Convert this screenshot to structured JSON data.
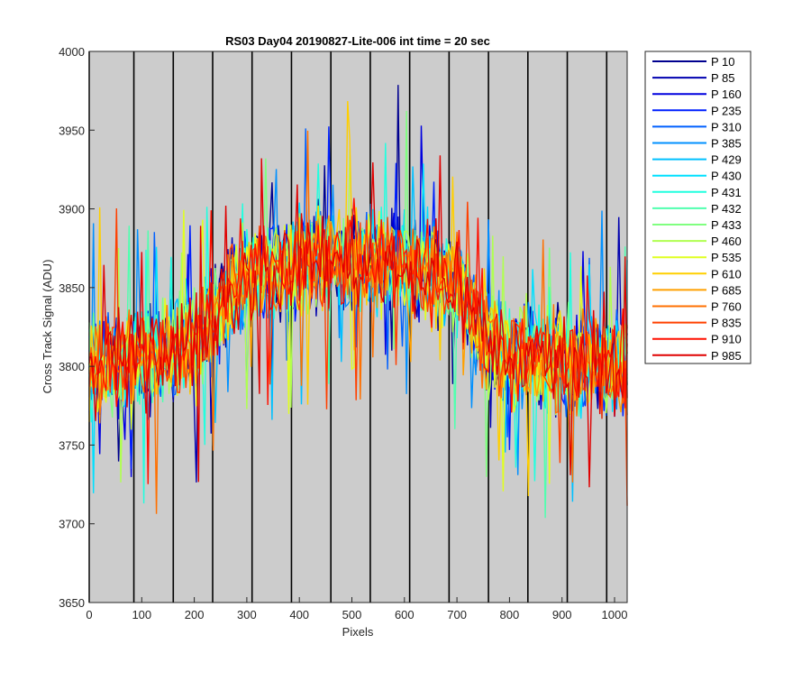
{
  "chart_data": {
    "type": "line",
    "title": "RS03 Day04 20190827-Lite-006 int time = 20 sec",
    "xlabel": "Pixels",
    "ylabel": "Cross Track Signal (ADU)",
    "xlim": [
      0,
      1024
    ],
    "ylim": [
      3650,
      4000
    ],
    "xticks": [
      0,
      100,
      200,
      300,
      400,
      500,
      600,
      700,
      800,
      900,
      1000
    ],
    "yticks": [
      3650,
      3700,
      3750,
      3800,
      3850,
      3900,
      3950,
      4000
    ],
    "background": "#cccccc",
    "grid": false,
    "legend_position": "outside-right",
    "vertical_markers_x": [
      0,
      85,
      160,
      235,
      310,
      385,
      460,
      535,
      610,
      685,
      760,
      835,
      910,
      985
    ],
    "vertical_marker_color": "#000000",
    "trend": {
      "description_points_x": [
        0,
        100,
        200,
        250,
        300,
        400,
        500,
        600,
        700,
        750,
        800,
        900,
        1024
      ],
      "mean_y": [
        3800,
        3805,
        3815,
        3840,
        3855,
        3865,
        3868,
        3865,
        3855,
        3820,
        3808,
        3803,
        3800
      ],
      "noise_band_adu": 45
    },
    "series": [
      {
        "name": "P 10",
        "color": "#00008f"
      },
      {
        "name": "P 85",
        "color": "#0000af"
      },
      {
        "name": "P 160",
        "color": "#0000df"
      },
      {
        "name": "P 235",
        "color": "#0020ff"
      },
      {
        "name": "P 310",
        "color": "#0060ff"
      },
      {
        "name": "P 385",
        "color": "#0090ff"
      },
      {
        "name": "P 429",
        "color": "#00c0ff"
      },
      {
        "name": "P 430",
        "color": "#00e0ff"
      },
      {
        "name": "P 431",
        "color": "#20ffdf"
      },
      {
        "name": "P 432",
        "color": "#50ffaf"
      },
      {
        "name": "P 433",
        "color": "#80ff80"
      },
      {
        "name": "P 460",
        "color": "#b0ff50"
      },
      {
        "name": "P 535",
        "color": "#e0ff20"
      },
      {
        "name": "P 610",
        "color": "#ffcf00"
      },
      {
        "name": "P 685",
        "color": "#ffa000"
      },
      {
        "name": "P 760",
        "color": "#ff7000"
      },
      {
        "name": "P 835",
        "color": "#ff4000"
      },
      {
        "name": "P 910",
        "color": "#ff1000"
      },
      {
        "name": "P 985",
        "color": "#df0000"
      }
    ]
  }
}
